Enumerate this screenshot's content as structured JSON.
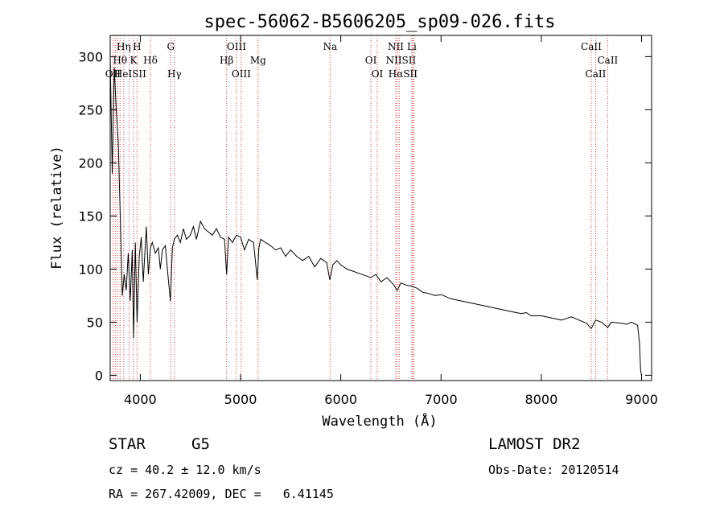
{
  "chart_data": {
    "type": "line",
    "title": "spec-56062-B5606205_sp09-026.fits",
    "xlabel": "Wavelength (Å)",
    "ylabel": "Flux (relative)",
    "xlim": [
      3700,
      9100
    ],
    "ylim": [
      -5,
      320
    ],
    "xticks": [
      4000,
      5000,
      6000,
      7000,
      8000,
      9000
    ],
    "yticks": [
      0,
      50,
      100,
      150,
      200,
      250,
      300
    ],
    "series": [
      {
        "x": [
          3700,
          3720,
          3740,
          3760,
          3780,
          3800,
          3820,
          3840,
          3860,
          3880,
          3900,
          3920,
          3933,
          3950,
          3968,
          3990,
          4010,
          4030,
          4060,
          4080,
          4101,
          4120,
          4150,
          4180,
          4200,
          4220,
          4250,
          4280,
          4300,
          4320,
          4340,
          4370,
          4400,
          4430,
          4460,
          4500,
          4530,
          4560,
          4600,
          4640,
          4680,
          4720,
          4760,
          4800,
          4840,
          4861,
          4880,
          4920,
          4960,
          5000,
          5040,
          5080,
          5130,
          5167,
          5183,
          5200,
          5250,
          5300,
          5350,
          5400,
          5450,
          5500,
          5560,
          5620,
          5680,
          5740,
          5800,
          5860,
          5890,
          5896,
          5920,
          5960,
          6000,
          6060,
          6120,
          6180,
          6240,
          6300,
          6350,
          6400,
          6460,
          6520,
          6563,
          6600,
          6650,
          6700,
          6760,
          6820,
          6880,
          6940,
          7000,
          7100,
          7200,
          7300,
          7400,
          7500,
          7600,
          7700,
          7800,
          7850,
          7900,
          8000,
          8100,
          8200,
          8300,
          8400,
          8450,
          8498,
          8542,
          8600,
          8662,
          8700,
          8800,
          8850,
          8900,
          8940,
          8960,
          8980,
          8990,
          9000
        ],
        "y": [
          300,
          190,
          290,
          250,
          220,
          150,
          75,
          95,
          80,
          115,
          70,
          118,
          35,
          125,
          50,
          112,
          130,
          88,
          140,
          95,
          120,
          125,
          115,
          120,
          100,
          118,
          122,
          90,
          70,
          120,
          128,
          132,
          125,
          138,
          128,
          132,
          140,
          128,
          145,
          138,
          135,
          132,
          138,
          130,
          128,
          95,
          130,
          125,
          132,
          130,
          118,
          128,
          125,
          90,
          120,
          128,
          125,
          122,
          118,
          120,
          112,
          118,
          112,
          108,
          112,
          102,
          110,
          106,
          90,
          92,
          104,
          108,
          104,
          100,
          98,
          96,
          94,
          92,
          95,
          88,
          92,
          86,
          80,
          87,
          85,
          84,
          82,
          78,
          77,
          75,
          76,
          72,
          70,
          68,
          66,
          64,
          62,
          60,
          58,
          59,
          56,
          56,
          54,
          52,
          55,
          51,
          49,
          44,
          52,
          50,
          45,
          50,
          49,
          48,
          50,
          48,
          47,
          30,
          5,
          0
        ]
      }
    ],
    "line_markers": [
      {
        "label": "Hη",
        "x": 3835,
        "row": 1
      },
      {
        "label": "H",
        "x": 3968,
        "row": 1
      },
      {
        "label": "G",
        "x": 4304,
        "row": 1
      },
      {
        "label": "OIII",
        "x": 4959,
        "row": 1
      },
      {
        "label": "Na",
        "x": 5893,
        "row": 1
      },
      {
        "label": "NII",
        "x": 6548,
        "row": 1
      },
      {
        "label": "Li",
        "x": 6708,
        "row": 1
      },
      {
        "label": "CaII",
        "x": 8498,
        "row": 1
      },
      {
        "label": "Hθ",
        "x": 3798,
        "row": 2
      },
      {
        "label": "K",
        "x": 3933,
        "row": 2
      },
      {
        "label": "Hδ",
        "x": 4101,
        "row": 2
      },
      {
        "label": "Hβ",
        "x": 4861,
        "row": 2
      },
      {
        "label": "Mg",
        "x": 5175,
        "row": 2
      },
      {
        "label": "OI",
        "x": 6300,
        "row": 2
      },
      {
        "label": "NIISII",
        "x": 6600,
        "row": 2
      },
      {
        "label": "CaII",
        "x": 8662,
        "row": 2
      },
      {
        "label": "OII",
        "x": 3727,
        "row": 3
      },
      {
        "label": "HeISII",
        "x": 3900,
        "row": 3
      },
      {
        "label": "Hγ",
        "x": 4340,
        "row": 3
      },
      {
        "label": "OIII",
        "x": 5007,
        "row": 3
      },
      {
        "label": "OI",
        "x": 6364,
        "row": 3
      },
      {
        "label": "HαSII",
        "x": 6620,
        "row": 3
      },
      {
        "label": "CaII",
        "x": 8542,
        "row": 3
      }
    ],
    "marker_lines_x": [
      3727,
      3750,
      3771,
      3798,
      3835,
      3889,
      3933,
      3968,
      4101,
      4304,
      4340,
      4861,
      4959,
      5007,
      5175,
      5893,
      6300,
      6364,
      6548,
      6563,
      6583,
      6708,
      6716,
      6731,
      8498,
      8542,
      8662
    ],
    "marker_line_color": "#d04040",
    "line_color": "#000000"
  },
  "info": {
    "class": "STAR",
    "subclass": "G5",
    "survey": "LAMOST DR2",
    "cz": "cz = 40.2 ± 12.0 km/s",
    "obs_date": "Obs-Date: 20120514",
    "coords": "RA = 267.42009, DEC =   6.41145"
  }
}
